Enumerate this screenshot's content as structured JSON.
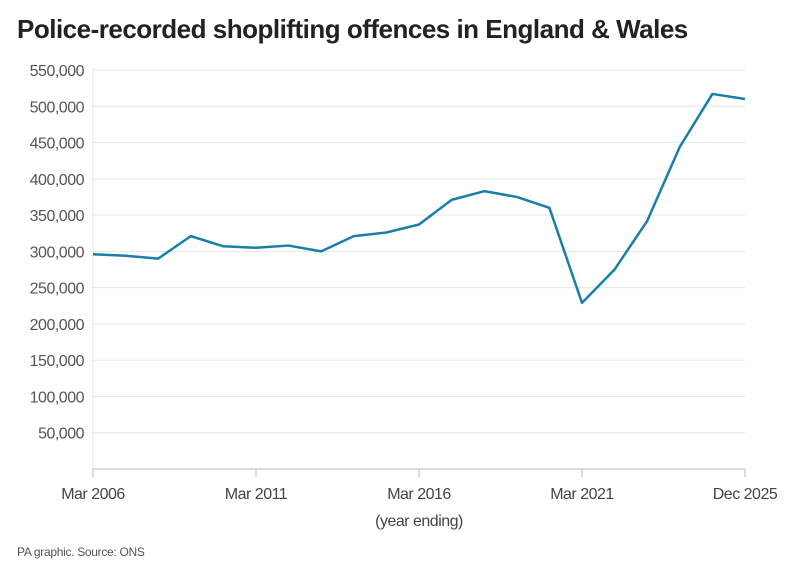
{
  "title": "Police-recorded shoplifting offences in England & Wales",
  "source": "PA graphic. Source: ONS",
  "chart_data": {
    "type": "line",
    "title": "Police-recorded shoplifting offences in England & Wales",
    "xlabel": "(year ending)",
    "ylabel": "",
    "categories": [
      "Mar 2006",
      "Mar 2007",
      "Mar 2008",
      "Mar 2009",
      "Mar 2010",
      "Mar 2011",
      "Mar 2012",
      "Mar 2013",
      "Mar 2014",
      "Mar 2015",
      "Mar 2016",
      "Mar 2017",
      "Mar 2018",
      "Mar 2019",
      "Mar 2020",
      "Mar 2021",
      "Mar 2022",
      "Mar 2023",
      "Mar 2024",
      "Mar 2025",
      "Dec 2025"
    ],
    "x_tick_labels": [
      "Mar 2006",
      "Mar 2011",
      "Mar 2016",
      "Mar 2021",
      "Dec 2025"
    ],
    "series": [
      {
        "values": [
          296000,
          294000,
          290000,
          321000,
          307000,
          305000,
          308000,
          300000,
          321000,
          326000,
          337000,
          371000,
          383000,
          375000,
          360000,
          229000,
          275000,
          342000,
          444000,
          517000,
          510000
        ],
        "color": "#1a7fa8"
      }
    ],
    "ylim": [
      0,
      550000
    ],
    "y_ticks": [
      50000,
      100000,
      150000,
      200000,
      250000,
      300000,
      350000,
      400000,
      450000,
      500000,
      550000
    ],
    "y_tick_labels": [
      "50,000",
      "100,000",
      "150,000",
      "200,000",
      "250,000",
      "300,000",
      "350,000",
      "400,000",
      "450,000",
      "500,000",
      "550,000"
    ],
    "grid": true,
    "legend": "none"
  }
}
